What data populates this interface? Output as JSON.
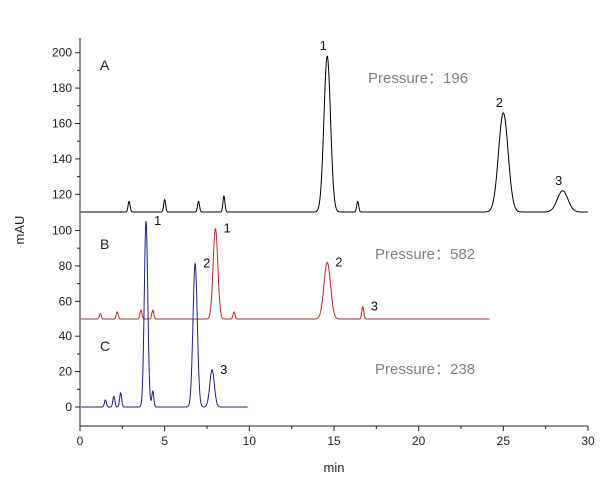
{
  "chart_data": {
    "type": "line",
    "title": "",
    "xlabel": "min",
    "ylabel": "mAU",
    "xlim": [
      0,
      30
    ],
    "x_ticks": [
      0,
      5,
      10,
      15,
      20,
      25,
      30
    ],
    "grid": false,
    "panels": [
      {
        "label": "A",
        "color": "#000000",
        "pressure_text": "Pressure：196",
        "baseline": 110,
        "yticks": [
          120,
          140,
          160,
          180,
          200
        ],
        "x_end": 30,
        "peaks": [
          {
            "t": 2.9,
            "h": 116
          },
          {
            "t": 5.0,
            "h": 117
          },
          {
            "t": 7.0,
            "h": 116
          },
          {
            "t": 8.5,
            "h": 119
          },
          {
            "t": 14.6,
            "h": 198,
            "label": "1"
          },
          {
            "t": 16.4,
            "h": 116
          },
          {
            "t": 25.0,
            "h": 166,
            "label": "2"
          },
          {
            "t": 28.5,
            "h": 122,
            "label": "3"
          }
        ]
      },
      {
        "label": "B",
        "color": "#c0262c",
        "pressure_text": "Pressure：582",
        "baseline": 50,
        "yticks": [
          60,
          80,
          100
        ],
        "x_end": 24.2,
        "peaks": [
          {
            "t": 1.2,
            "h": 53
          },
          {
            "t": 2.2,
            "h": 54
          },
          {
            "t": 3.6,
            "h": 55
          },
          {
            "t": 4.3,
            "h": 55
          },
          {
            "t": 8.0,
            "h": 101,
            "label": "1"
          },
          {
            "t": 9.1,
            "h": 54
          },
          {
            "t": 14.6,
            "h": 82,
            "label": "2"
          },
          {
            "t": 16.7,
            "h": 57,
            "label": "3"
          }
        ]
      },
      {
        "label": "C",
        "color": "#1f1f8c",
        "pressure_text": "Pressure：238",
        "baseline": 0,
        "yticks": [
          0,
          20,
          40
        ],
        "x_end": 9.9,
        "peaks": [
          {
            "t": 1.5,
            "h": 4
          },
          {
            "t": 2.0,
            "h": 6
          },
          {
            "t": 2.4,
            "h": 8
          },
          {
            "t": 3.9,
            "h": 105,
            "label": "1"
          },
          {
            "t": 4.3,
            "h": 9
          },
          {
            "t": 6.8,
            "h": 81,
            "label": "2"
          },
          {
            "t": 7.8,
            "h": 21,
            "label": "3"
          }
        ]
      }
    ]
  }
}
